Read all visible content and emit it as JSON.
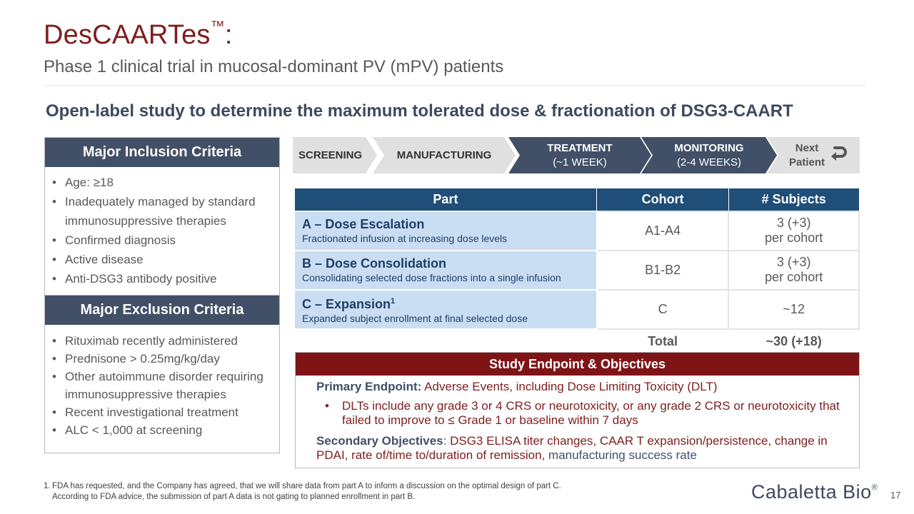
{
  "header": {
    "title": "DesCAARTes",
    "title_tm": "™",
    "title_suffix": ":",
    "subtitle": "Phase 1 clinical trial in mucosal-dominant PV (mPV) patients"
  },
  "heading": "Open-label study to determine the maximum tolerated dose & fractionation of DSG3-CAART",
  "inclusion": {
    "title": "Major Inclusion Criteria",
    "items": [
      "Age: ≥18",
      "Inadequately managed by standard immunosuppressive therapies",
      "Confirmed diagnosis",
      "Active disease",
      "Anti-DSG3 antibody positive"
    ]
  },
  "exclusion": {
    "title": "Major Exclusion Criteria",
    "items": [
      "Rituximab recently administered",
      "Prednisone > 0.25mg/kg/day",
      "Other autoimmune disorder requiring immunosuppressive therapies",
      "Recent investigational treatment",
      "ALC < 1,000 at screening"
    ]
  },
  "process": {
    "screening": "SCREENING",
    "manufacturing": "MANUFACTURING",
    "treatment_line1": "TREATMENT",
    "treatment_line2": "(~1 WEEK)",
    "monitoring_line1": "MONITORING",
    "monitoring_line2": "(2-4 WEEKS)",
    "next_line1": "Next",
    "next_line2": "Patient",
    "next_icon": "return-arrow-icon"
  },
  "table": {
    "headers": [
      "Part",
      "Cohort",
      "# Subjects"
    ],
    "rows": [
      {
        "name": "A – Dose Escalation",
        "sup": "",
        "desc": "Fractionated infusion at increasing dose levels",
        "cohort": "A1-A4",
        "subjects_line1": "3 (+3)",
        "subjects_line2": "per cohort"
      },
      {
        "name": "B – Dose Consolidation",
        "sup": "",
        "desc": "Consolidating selected dose fractions into a single infusion",
        "cohort": "B1-B2",
        "subjects_line1": "3 (+3)",
        "subjects_line2": "per cohort"
      },
      {
        "name": "C – Expansion",
        "sup": "1",
        "desc": "Expanded subject enrollment at final selected dose",
        "cohort": "C",
        "subjects_line1": "~12",
        "subjects_line2": ""
      }
    ],
    "total_label": "Total",
    "total_value": "~30 (+18)"
  },
  "endpoints": {
    "title": "Study Endpoint & Objectives",
    "primary_label": "Primary Endpoint:",
    "primary_text": " Adverse Events, including Dose Limiting Toxicity (DLT)",
    "bullet": "DLTs include any grade 3 or 4 CRS or neurotoxicity, or any grade 2 CRS or neurotoxicity that failed to improve to ≤ Grade 1 or baseline within 7 days",
    "secondary_label": "Secondary Objectives",
    "secondary_colon": ": ",
    "secondary_text": "DSG3 ELISA titer changes, CAAR T expansion/persistence, change in PDAI, rate of/time to/duration of remission,",
    "secondary_tail": " manufacturing success rate"
  },
  "footnote": {
    "number": "1.",
    "line1": "FDA has requested, and the Company has agreed, that we will share data from part A to inform a discussion on the optimal design of part C.",
    "line2": "According to FDA advice, the submission of part A data is not gating to planned enrollment in part B."
  },
  "logo": {
    "text": "Cabaletta Bio",
    "mark": "®"
  },
  "page_number": "17",
  "colors": {
    "title_red": "#7f1d1d",
    "navy": "#415066",
    "table_blue": "#1f4e79",
    "row_blue": "#c9def2",
    "endpoint_red": "#7f1417"
  }
}
